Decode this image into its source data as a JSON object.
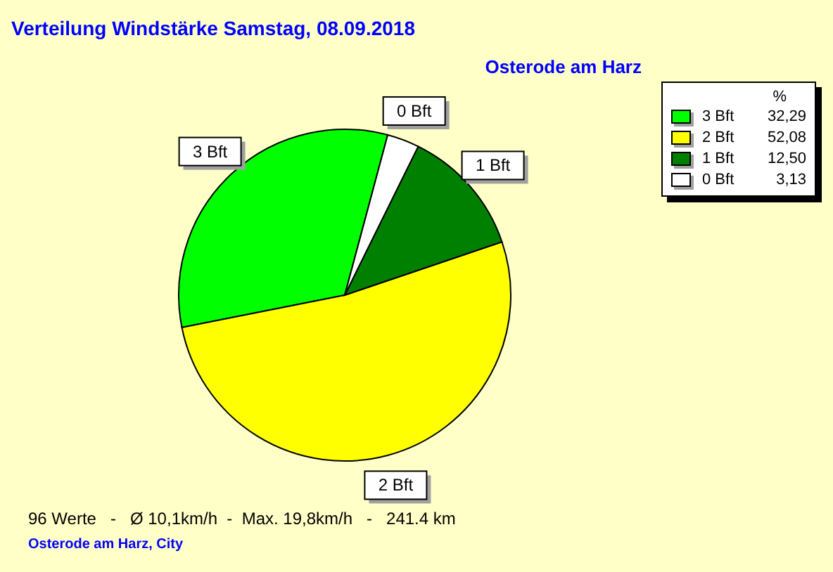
{
  "chart_data": {
    "type": "pie",
    "title": "Verteilung Windstärke  Samstag, 08.09.2018",
    "subtitle": "Osterode am Harz",
    "legend_title": "%",
    "categories": [
      "3 Bft",
      "2 Bft",
      "1 Bft",
      "0 Bft"
    ],
    "values": [
      32.29,
      52.08,
      12.5,
      3.13
    ],
    "value_labels": [
      "32,29",
      "52,08",
      "12,50",
      "3,13"
    ],
    "colors": [
      "#00ff00",
      "#ffff00",
      "#008000",
      "#ffffff"
    ],
    "legend": "top right",
    "annotations": [
      "96 Werte   -   Ø 10,1km/h  -  Max. 19,8km/h   -   241.4 km",
      "Osterode am Harz, City"
    ]
  }
}
